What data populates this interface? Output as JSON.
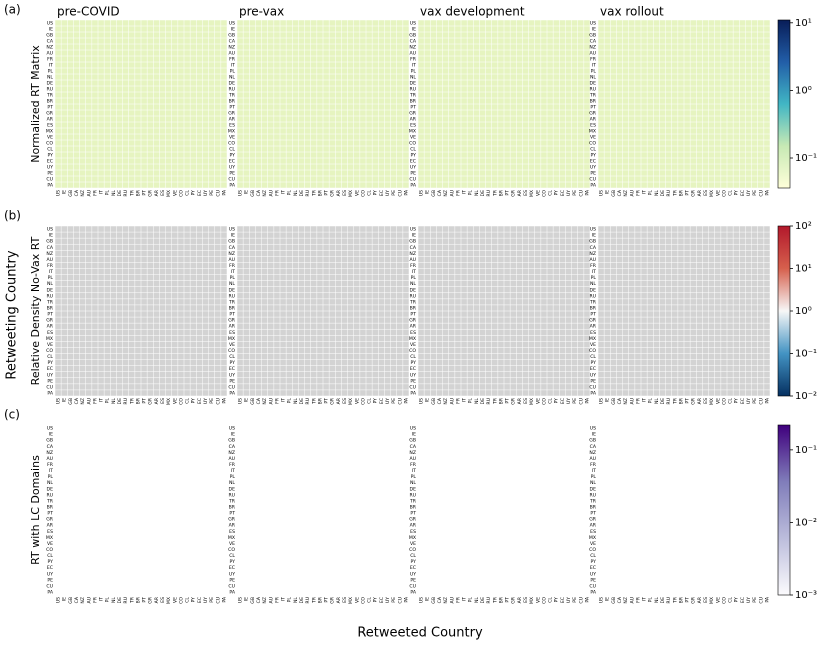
{
  "panel_labels": [
    "(a)",
    "(b)",
    "(c)"
  ],
  "columns": [
    "pre-COVID",
    "pre-vax",
    "vax development",
    "vax rollout"
  ],
  "row_titles": [
    "Normalized RT Matrix",
    "Relative Density No-Vax RT",
    "RT with LC Domains"
  ],
  "y_label": "Retweeting Country",
  "x_label": "Retweeted Country",
  "countries": [
    "US",
    "IE",
    "GB",
    "CA",
    "NZ",
    "AU",
    "FR",
    "IT",
    "PL",
    "NL",
    "DE",
    "RU",
    "TR",
    "BR",
    "PT",
    "GR",
    "AR",
    "ES",
    "MX",
    "VE",
    "CO",
    "CL",
    "PY",
    "EC",
    "UY",
    "PE",
    "CU",
    "PA"
  ],
  "colorbars": [
    {
      "scale": "log",
      "lim": [
        0.036,
        11
      ],
      "colors": [
        "#ffffd9",
        "#c7e9b4",
        "#41b6c4",
        "#225ea8",
        "#081d58"
      ],
      "ticks": [
        {
          "value": 10,
          "label": "10¹"
        },
        {
          "value": 1,
          "label": "10⁰"
        },
        {
          "value": 0.1,
          "label": "10⁻¹"
        }
      ]
    },
    {
      "scale": "log",
      "lim": [
        0.01,
        100
      ],
      "colors": [
        "#053061",
        "#4393c3",
        "#f7f7f7",
        "#d6604d",
        "#b2182b"
      ],
      "ticks": [
        {
          "value": 100,
          "label": "10²"
        },
        {
          "value": 10,
          "label": "10¹"
        },
        {
          "value": 1,
          "label": "10⁰"
        },
        {
          "value": 0.1,
          "label": "10⁻¹"
        },
        {
          "value": 0.01,
          "label": "10⁻²"
        }
      ]
    },
    {
      "scale": "log",
      "lim": [
        0.001,
        0.22
      ],
      "colors": [
        "#fcfbfd",
        "#bcbddc",
        "#807dba",
        "#3f007d"
      ],
      "ticks": [
        {
          "value": 0.1,
          "label": "10⁻¹"
        },
        {
          "value": 0.01,
          "label": "10⁻²"
        },
        {
          "value": 0.001,
          "label": "10⁻³"
        }
      ]
    }
  ]
}
